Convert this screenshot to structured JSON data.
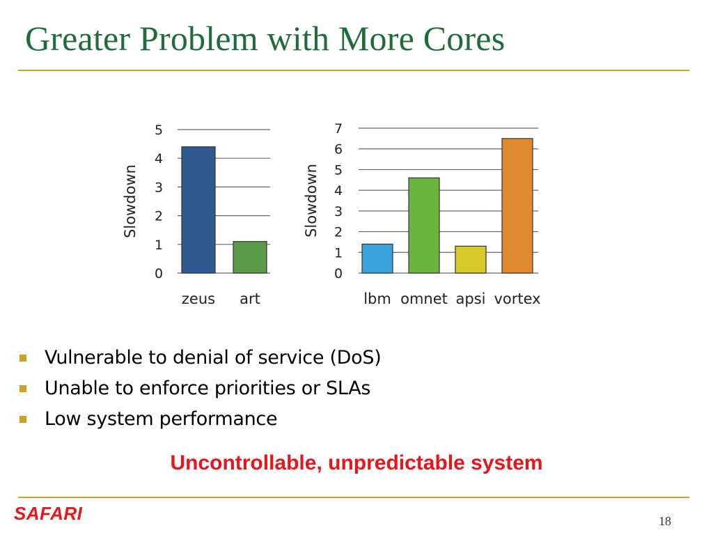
{
  "slide": {
    "title": "Greater Problem with More Cores",
    "bullets": [
      "Vulnerable to denial of service (DoS)",
      "Unable to enforce priorities or SLAs",
      "Low system performance"
    ],
    "callout": "Uncontrollable, unpredictable system",
    "logo": "SAFARI",
    "page_number": "18",
    "colors": {
      "title": "#1f6b3a",
      "rule": "#c9a227",
      "callout": "#e8151b"
    }
  },
  "chart_data": [
    {
      "type": "bar",
      "categories": [
        "zeus",
        "art"
      ],
      "values": [
        4.4,
        1.1
      ],
      "colors": [
        "#2f5a8f",
        "#5a9a49"
      ],
      "ylabel": "Slowdown",
      "ylim": [
        0,
        5
      ],
      "yticks": [
        0,
        1,
        2,
        3,
        4,
        5
      ],
      "grid": true
    },
    {
      "type": "bar",
      "categories": [
        "lbm",
        "omnet",
        "apsi",
        "vortex"
      ],
      "values": [
        1.4,
        4.6,
        1.3,
        6.5
      ],
      "colors": [
        "#39a3dd",
        "#6ab43e",
        "#d8c82a",
        "#e08a2f"
      ],
      "ylabel": "Slowdown",
      "ylim": [
        0,
        7
      ],
      "yticks": [
        0,
        1,
        2,
        3,
        4,
        5,
        6,
        7
      ],
      "grid": true
    }
  ]
}
